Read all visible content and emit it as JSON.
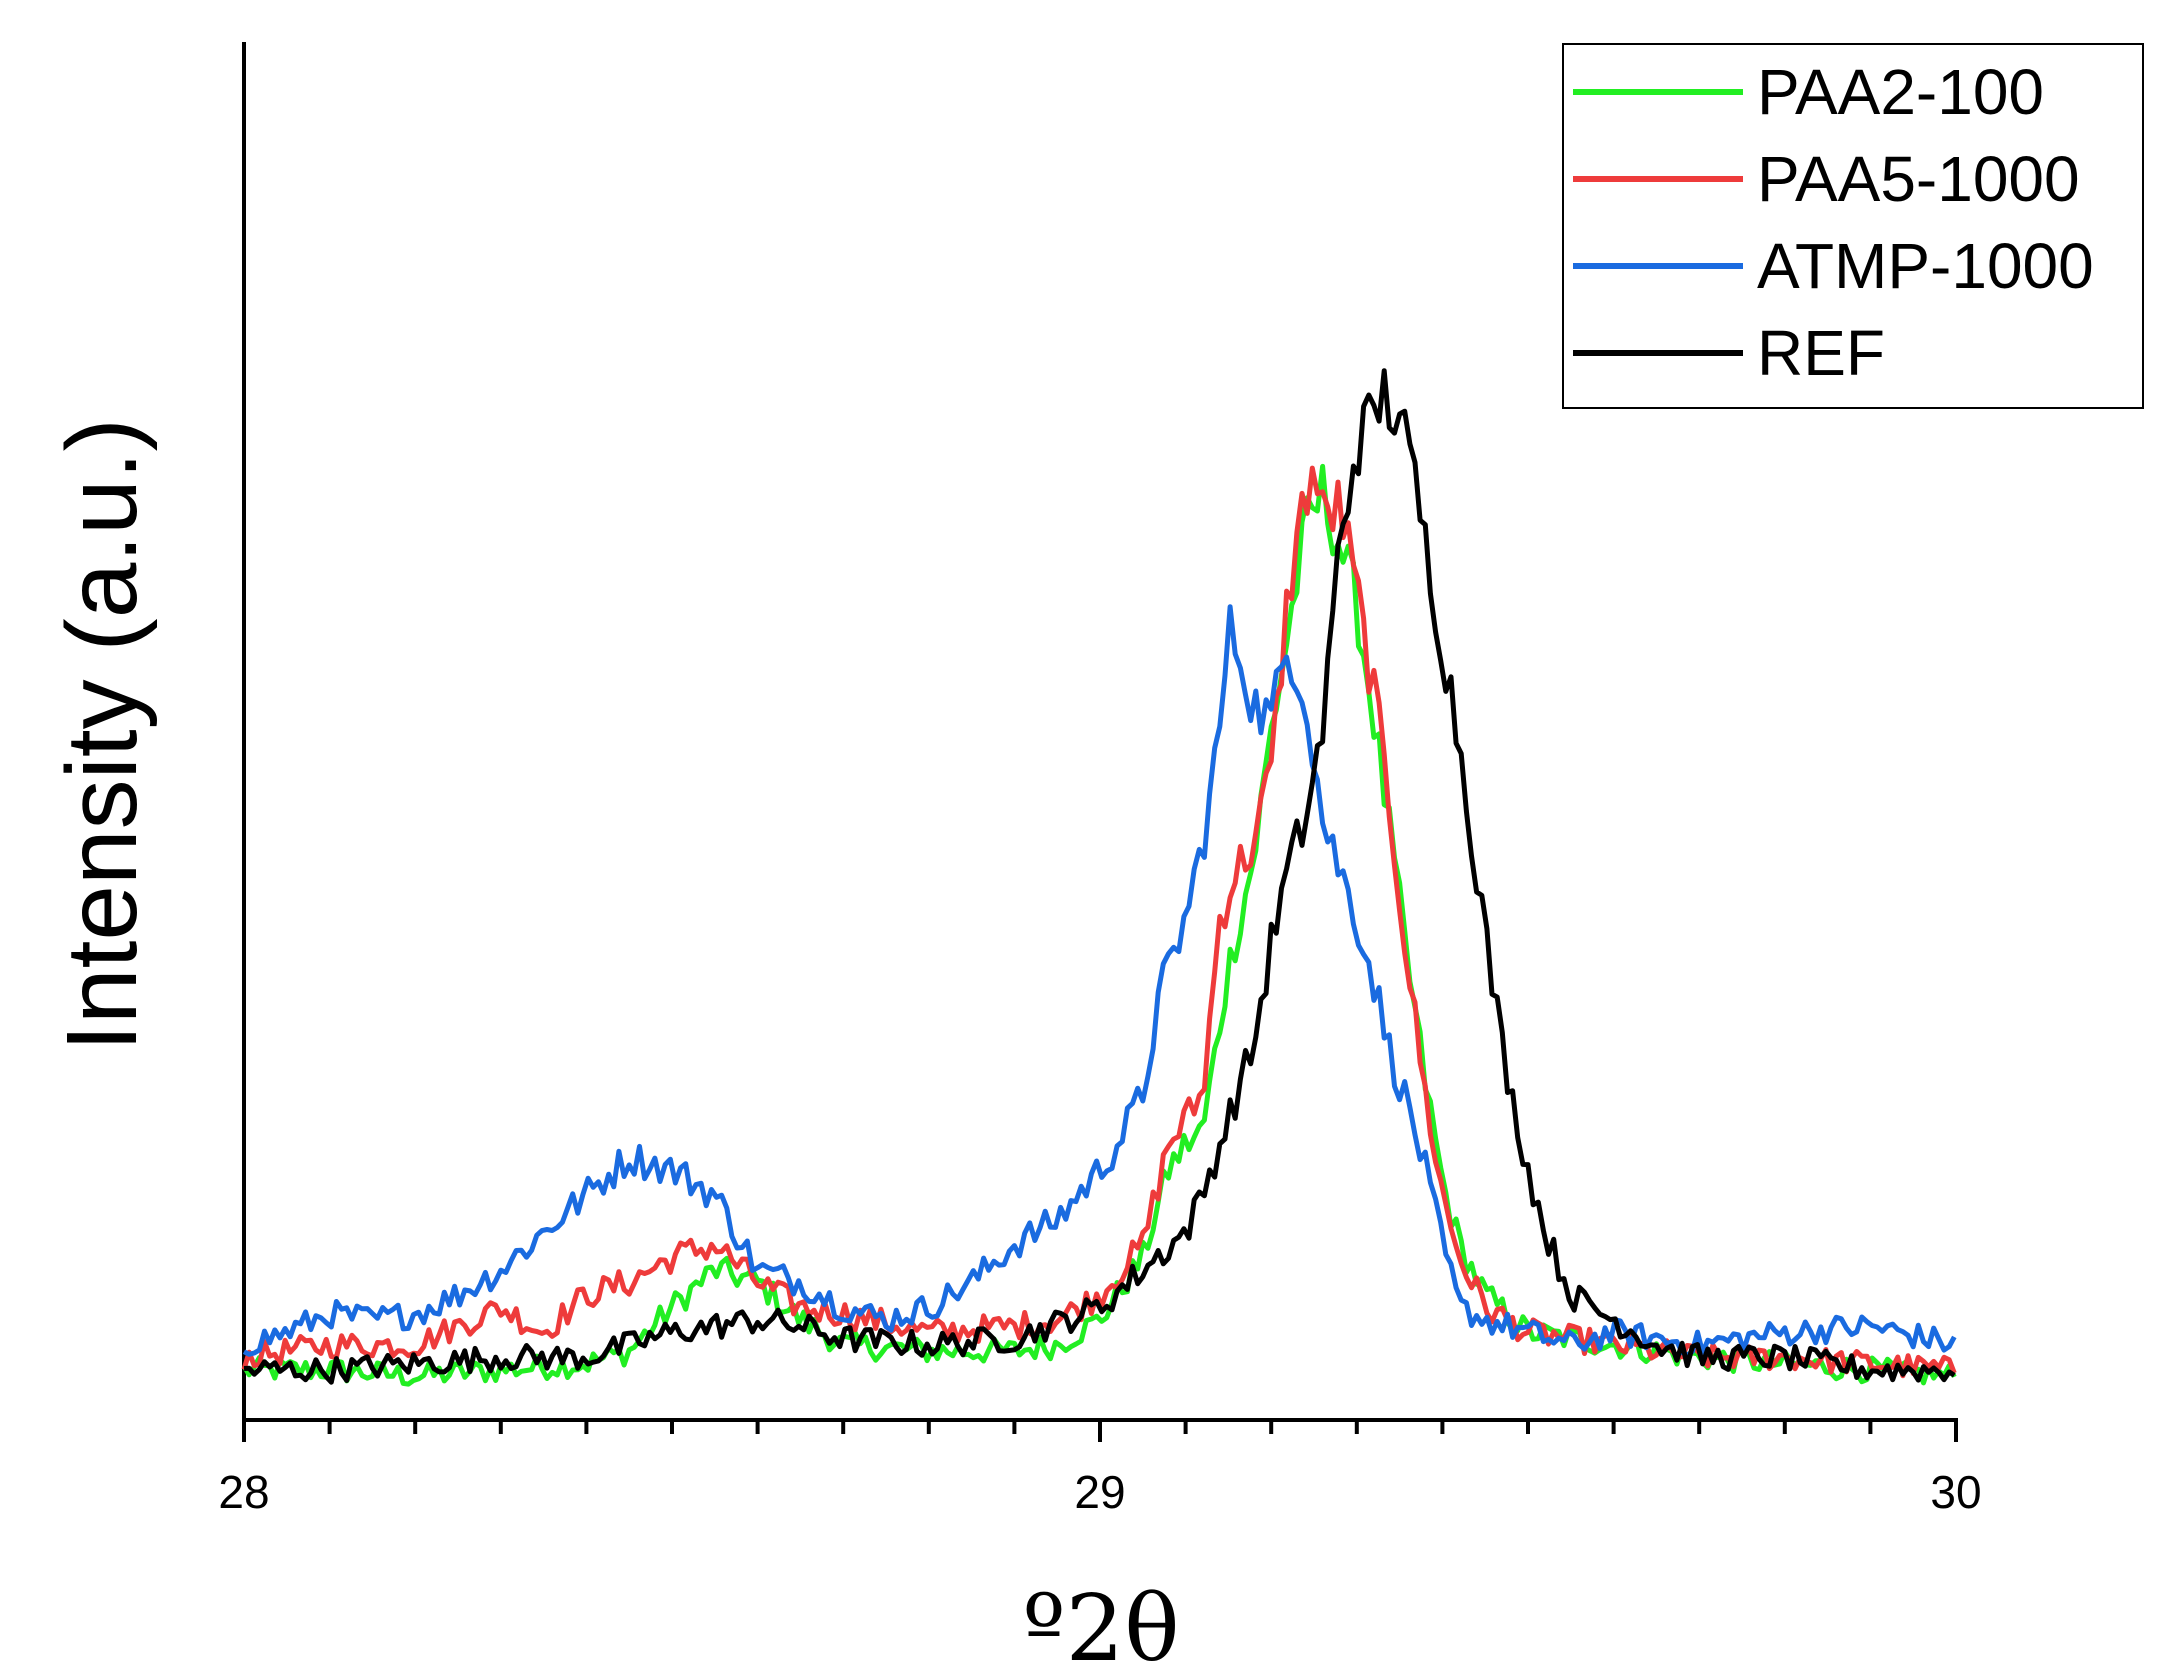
{
  "chart_data": {
    "type": "line",
    "title": "",
    "xlabel": "º2θ",
    "ylabel": "Intensity (a.u.)",
    "xlim": [
      28,
      30
    ],
    "ylim": [
      0,
      1.1
    ],
    "x_ticks": [
      "28",
      "29",
      "30"
    ],
    "grid": false,
    "legend_position": "top-right",
    "series": [
      {
        "name": "PAA2-100",
        "color": "#22ee22",
        "points": [
          [
            28.0,
            0.04
          ],
          [
            28.1,
            0.04
          ],
          [
            28.2,
            0.035
          ],
          [
            28.3,
            0.04
          ],
          [
            28.4,
            0.045
          ],
          [
            28.45,
            0.055
          ],
          [
            28.5,
            0.09
          ],
          [
            28.55,
            0.12
          ],
          [
            28.6,
            0.11
          ],
          [
            28.65,
            0.08
          ],
          [
            28.7,
            0.06
          ],
          [
            28.8,
            0.055
          ],
          [
            28.9,
            0.055
          ],
          [
            28.95,
            0.06
          ],
          [
            29.0,
            0.08
          ],
          [
            29.05,
            0.13
          ],
          [
            29.08,
            0.2
          ],
          [
            29.1,
            0.22
          ],
          [
            29.12,
            0.23
          ],
          [
            29.15,
            0.36
          ],
          [
            29.18,
            0.45
          ],
          [
            29.2,
            0.55
          ],
          [
            29.22,
            0.63
          ],
          [
            29.24,
            0.71
          ],
          [
            29.26,
            0.74
          ],
          [
            29.27,
            0.72
          ],
          [
            29.28,
            0.7
          ],
          [
            29.3,
            0.65
          ],
          [
            29.32,
            0.56
          ],
          [
            29.34,
            0.46
          ],
          [
            29.36,
            0.36
          ],
          [
            29.38,
            0.27
          ],
          [
            29.4,
            0.19
          ],
          [
            29.42,
            0.14
          ],
          [
            29.45,
            0.1
          ],
          [
            29.5,
            0.07
          ],
          [
            29.6,
            0.06
          ],
          [
            29.7,
            0.05
          ],
          [
            29.8,
            0.045
          ],
          [
            29.9,
            0.04
          ],
          [
            30.0,
            0.035
          ]
        ]
      },
      {
        "name": "PAA5-1000",
        "color": "#ee3b3b",
        "points": [
          [
            28.0,
            0.05
          ],
          [
            28.1,
            0.06
          ],
          [
            28.2,
            0.06
          ],
          [
            28.3,
            0.09
          ],
          [
            28.35,
            0.07
          ],
          [
            28.4,
            0.1
          ],
          [
            28.45,
            0.11
          ],
          [
            28.5,
            0.13
          ],
          [
            28.55,
            0.14
          ],
          [
            28.6,
            0.11
          ],
          [
            28.65,
            0.09
          ],
          [
            28.7,
            0.085
          ],
          [
            28.8,
            0.07
          ],
          [
            28.9,
            0.075
          ],
          [
            28.95,
            0.08
          ],
          [
            29.0,
            0.1
          ],
          [
            29.05,
            0.14
          ],
          [
            29.08,
            0.22
          ],
          [
            29.1,
            0.24
          ],
          [
            29.12,
            0.26
          ],
          [
            29.14,
            0.4
          ],
          [
            29.16,
            0.44
          ],
          [
            29.18,
            0.46
          ],
          [
            29.2,
            0.52
          ],
          [
            29.22,
            0.66
          ],
          [
            29.24,
            0.74
          ],
          [
            29.25,
            0.76
          ],
          [
            29.26,
            0.72
          ],
          [
            29.28,
            0.73
          ],
          [
            29.3,
            0.66
          ],
          [
            29.32,
            0.58
          ],
          [
            29.34,
            0.48
          ],
          [
            29.36,
            0.36
          ],
          [
            29.38,
            0.26
          ],
          [
            29.4,
            0.18
          ],
          [
            29.42,
            0.13
          ],
          [
            29.45,
            0.09
          ],
          [
            29.5,
            0.07
          ],
          [
            29.6,
            0.06
          ],
          [
            29.7,
            0.05
          ],
          [
            29.8,
            0.05
          ],
          [
            29.9,
            0.045
          ],
          [
            30.0,
            0.04
          ]
        ]
      },
      {
        "name": "ATMP-1000",
        "color": "#1a6be0",
        "points": [
          [
            28.0,
            0.06
          ],
          [
            28.05,
            0.07
          ],
          [
            28.1,
            0.085
          ],
          [
            28.15,
            0.08
          ],
          [
            28.2,
            0.085
          ],
          [
            28.25,
            0.1
          ],
          [
            28.3,
            0.12
          ],
          [
            28.35,
            0.15
          ],
          [
            28.4,
            0.18
          ],
          [
            28.45,
            0.21
          ],
          [
            28.5,
            0.2
          ],
          [
            28.55,
            0.18
          ],
          [
            28.6,
            0.12
          ],
          [
            28.65,
            0.11
          ],
          [
            28.7,
            0.09
          ],
          [
            28.75,
            0.08
          ],
          [
            28.8,
            0.09
          ],
          [
            28.85,
            0.11
          ],
          [
            28.9,
            0.14
          ],
          [
            28.95,
            0.16
          ],
          [
            29.0,
            0.2
          ],
          [
            29.02,
            0.22
          ],
          [
            29.05,
            0.26
          ],
          [
            29.07,
            0.34
          ],
          [
            29.09,
            0.38
          ],
          [
            29.1,
            0.4
          ],
          [
            29.12,
            0.46
          ],
          [
            29.14,
            0.55
          ],
          [
            29.15,
            0.63
          ],
          [
            29.16,
            0.62
          ],
          [
            29.18,
            0.57
          ],
          [
            29.2,
            0.56
          ],
          [
            29.22,
            0.62
          ],
          [
            29.24,
            0.58
          ],
          [
            29.26,
            0.48
          ],
          [
            29.28,
            0.44
          ],
          [
            29.3,
            0.4
          ],
          [
            29.32,
            0.35
          ],
          [
            29.34,
            0.29
          ],
          [
            29.36,
            0.25
          ],
          [
            29.38,
            0.2
          ],
          [
            29.4,
            0.14
          ],
          [
            29.42,
            0.09
          ],
          [
            29.45,
            0.08
          ],
          [
            29.5,
            0.07
          ],
          [
            29.55,
            0.06
          ],
          [
            29.6,
            0.07
          ],
          [
            29.7,
            0.06
          ],
          [
            29.8,
            0.07
          ],
          [
            29.9,
            0.075
          ],
          [
            30.0,
            0.06
          ]
        ]
      },
      {
        "name": "REF",
        "color": "#000000",
        "points": [
          [
            28.0,
            0.04
          ],
          [
            28.1,
            0.04
          ],
          [
            28.2,
            0.045
          ],
          [
            28.3,
            0.05
          ],
          [
            28.4,
            0.05
          ],
          [
            28.45,
            0.06
          ],
          [
            28.5,
            0.07
          ],
          [
            28.55,
            0.075
          ],
          [
            28.6,
            0.08
          ],
          [
            28.65,
            0.075
          ],
          [
            28.7,
            0.065
          ],
          [
            28.8,
            0.06
          ],
          [
            28.9,
            0.065
          ],
          [
            29.0,
            0.09
          ],
          [
            29.05,
            0.12
          ],
          [
            29.1,
            0.15
          ],
          [
            29.12,
            0.18
          ],
          [
            29.15,
            0.24
          ],
          [
            29.18,
            0.3
          ],
          [
            29.2,
            0.38
          ],
          [
            29.22,
            0.44
          ],
          [
            29.24,
            0.48
          ],
          [
            29.26,
            0.55
          ],
          [
            29.28,
            0.7
          ],
          [
            29.3,
            0.78
          ],
          [
            29.32,
            0.8
          ],
          [
            29.33,
            0.82
          ],
          [
            29.35,
            0.8
          ],
          [
            29.37,
            0.74
          ],
          [
            29.4,
            0.62
          ],
          [
            29.42,
            0.54
          ],
          [
            29.44,
            0.44
          ],
          [
            29.46,
            0.34
          ],
          [
            29.48,
            0.26
          ],
          [
            29.5,
            0.2
          ],
          [
            29.52,
            0.15
          ],
          [
            29.55,
            0.1
          ],
          [
            29.6,
            0.08
          ],
          [
            29.65,
            0.06
          ],
          [
            29.7,
            0.05
          ],
          [
            29.8,
            0.05
          ],
          [
            29.9,
            0.04
          ],
          [
            30.0,
            0.04
          ]
        ]
      }
    ]
  }
}
